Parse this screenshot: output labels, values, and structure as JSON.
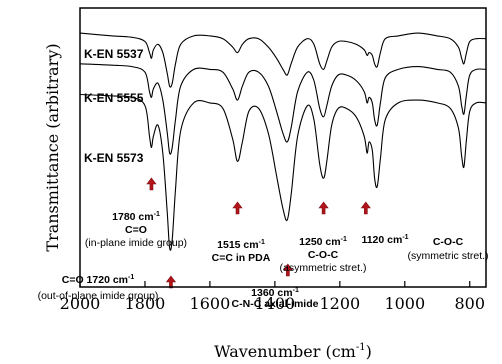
{
  "chart_data": {
    "type": "line",
    "xlabel": "Wavenumber (cm",
    "xlabel_sup": "-1",
    "xlabel_end": ")",
    "ylabel": "Transmittance (arbitrary)",
    "xlim": [
      2000,
      750
    ],
    "x_reversed": true,
    "xticks": [
      2000,
      1800,
      1600,
      1400,
      1200,
      1000,
      800
    ],
    "xtick_labels": [
      "2000",
      "1800",
      "1600",
      "1400",
      "1200",
      "1000",
      "800"
    ],
    "ylim": [
      0,
      100
    ],
    "grid": false,
    "series": [
      {
        "name": "K-EN 5537",
        "points": [
          [
            2000,
            91
          ],
          [
            1900,
            90
          ],
          [
            1840,
            89.5
          ],
          [
            1800,
            88
          ],
          [
            1786,
            84
          ],
          [
            1780,
            82
          ],
          [
            1774,
            85
          ],
          [
            1760,
            87
          ],
          [
            1745,
            84
          ],
          [
            1732,
            77
          ],
          [
            1724,
            72
          ],
          [
            1716,
            73
          ],
          [
            1706,
            80
          ],
          [
            1690,
            87
          ],
          [
            1650,
            90
          ],
          [
            1600,
            90
          ],
          [
            1560,
            89
          ],
          [
            1530,
            86
          ],
          [
            1515,
            84
          ],
          [
            1500,
            87
          ],
          [
            1480,
            89
          ],
          [
            1450,
            89
          ],
          [
            1420,
            86
          ],
          [
            1395,
            82
          ],
          [
            1375,
            78
          ],
          [
            1362,
            76
          ],
          [
            1350,
            80
          ],
          [
            1330,
            86
          ],
          [
            1300,
            89
          ],
          [
            1280,
            87
          ],
          [
            1262,
            80
          ],
          [
            1250,
            78
          ],
          [
            1240,
            81
          ],
          [
            1225,
            86
          ],
          [
            1205,
            88
          ],
          [
            1180,
            88
          ],
          [
            1150,
            87
          ],
          [
            1125,
            85
          ],
          [
            1116,
            83
          ],
          [
            1110,
            84
          ],
          [
            1100,
            83
          ],
          [
            1093,
            80
          ],
          [
            1085,
            79
          ],
          [
            1075,
            84
          ],
          [
            1060,
            89
          ],
          [
            1020,
            90
          ],
          [
            960,
            91
          ],
          [
            900,
            90
          ],
          [
            860,
            89
          ],
          [
            835,
            86
          ],
          [
            825,
            82
          ],
          [
            818,
            80
          ],
          [
            810,
            84
          ],
          [
            800,
            88
          ],
          [
            780,
            89
          ],
          [
            750,
            89
          ]
        ]
      },
      {
        "name": "K-EN 5555",
        "points": [
          [
            2000,
            80
          ],
          [
            1900,
            79.5
          ],
          [
            1840,
            79
          ],
          [
            1800,
            77
          ],
          [
            1786,
            70
          ],
          [
            1780,
            68
          ],
          [
            1774,
            71
          ],
          [
            1760,
            73
          ],
          [
            1745,
            67
          ],
          [
            1732,
            56
          ],
          [
            1724,
            48
          ],
          [
            1716,
            50
          ],
          [
            1706,
            60
          ],
          [
            1690,
            72
          ],
          [
            1650,
            78
          ],
          [
            1600,
            78
          ],
          [
            1560,
            77
          ],
          [
            1530,
            71
          ],
          [
            1515,
            67
          ],
          [
            1500,
            72
          ],
          [
            1480,
            77
          ],
          [
            1450,
            77
          ],
          [
            1420,
            72
          ],
          [
            1395,
            63
          ],
          [
            1375,
            55
          ],
          [
            1362,
            52
          ],
          [
            1350,
            57
          ],
          [
            1330,
            70
          ],
          [
            1300,
            77
          ],
          [
            1280,
            74
          ],
          [
            1262,
            64
          ],
          [
            1250,
            61
          ],
          [
            1240,
            65
          ],
          [
            1225,
            72
          ],
          [
            1205,
            76
          ],
          [
            1180,
            76
          ],
          [
            1150,
            74
          ],
          [
            1125,
            70
          ],
          [
            1116,
            66
          ],
          [
            1110,
            68
          ],
          [
            1100,
            66
          ],
          [
            1093,
            60
          ],
          [
            1085,
            58
          ],
          [
            1075,
            66
          ],
          [
            1060,
            75
          ],
          [
            1020,
            78
          ],
          [
            960,
            79
          ],
          [
            900,
            78
          ],
          [
            860,
            77
          ],
          [
            835,
            72
          ],
          [
            825,
            65
          ],
          [
            818,
            62
          ],
          [
            810,
            69
          ],
          [
            800,
            76
          ],
          [
            780,
            78
          ],
          [
            750,
            78
          ]
        ]
      },
      {
        "name": "K-EN 5573",
        "points": [
          [
            2000,
            69
          ],
          [
            1900,
            68.5
          ],
          [
            1840,
            68
          ],
          [
            1800,
            65
          ],
          [
            1786,
            54
          ],
          [
            1780,
            50
          ],
          [
            1774,
            54
          ],
          [
            1760,
            58
          ],
          [
            1745,
            48
          ],
          [
            1732,
            28
          ],
          [
            1724,
            14
          ],
          [
            1716,
            17
          ],
          [
            1706,
            35
          ],
          [
            1690,
            56
          ],
          [
            1650,
            66
          ],
          [
            1600,
            66
          ],
          [
            1560,
            64
          ],
          [
            1530,
            53
          ],
          [
            1515,
            45
          ],
          [
            1500,
            52
          ],
          [
            1480,
            63
          ],
          [
            1450,
            64
          ],
          [
            1420,
            55
          ],
          [
            1395,
            40
          ],
          [
            1375,
            28
          ],
          [
            1362,
            24
          ],
          [
            1350,
            33
          ],
          [
            1330,
            54
          ],
          [
            1300,
            65
          ],
          [
            1280,
            60
          ],
          [
            1262,
            44
          ],
          [
            1250,
            39
          ],
          [
            1240,
            45
          ],
          [
            1225,
            58
          ],
          [
            1205,
            64
          ],
          [
            1180,
            64
          ],
          [
            1150,
            61
          ],
          [
            1125,
            54
          ],
          [
            1116,
            48
          ],
          [
            1110,
            52
          ],
          [
            1100,
            49
          ],
          [
            1093,
            39
          ],
          [
            1085,
            36
          ],
          [
            1075,
            46
          ],
          [
            1060,
            60
          ],
          [
            1020,
            66
          ],
          [
            960,
            67
          ],
          [
            900,
            66
          ],
          [
            860,
            64
          ],
          [
            835,
            57
          ],
          [
            825,
            47
          ],
          [
            818,
            43
          ],
          [
            810,
            53
          ],
          [
            800,
            63
          ],
          [
            780,
            66
          ],
          [
            750,
            66
          ]
        ]
      }
    ],
    "annotations": [
      {
        "lines": [
          "1780 cm",
          "C=O",
          "(in-plane imide group)"
        ],
        "sup": "-1",
        "arrow_x": 1780,
        "arrow_dir": "up"
      },
      {
        "lines": [
          "C=O 1720 cm",
          "(out-of-plane imide group)"
        ],
        "sup": "-1",
        "arrow_x": 1720,
        "arrow_dir": "up"
      },
      {
        "lines": [
          "1515 cm",
          "C=C in PDA"
        ],
        "sup": "-1",
        "arrow_x": 1515,
        "arrow_dir": "up"
      },
      {
        "lines": [
          "1360 cm",
          "C-N-C axial-imide"
        ],
        "sup": "-1",
        "arrow_x": 1360,
        "arrow_dir": "up"
      },
      {
        "lines": [
          "1250 cm",
          "C-O-C",
          "(asymmetric stret.)"
        ],
        "sup": "-1",
        "arrow_x": 1250,
        "arrow_dir": "up"
      },
      {
        "lines": [
          "1120 cm"
        ],
        "sup": "-1",
        "arrow_x": 1120,
        "arrow_dir": "up"
      },
      {
        "lines": [
          "C-O-C",
          "(symmetric stret.)"
        ],
        "sup": "",
        "arrow_x": null,
        "arrow_dir": null
      }
    ]
  }
}
